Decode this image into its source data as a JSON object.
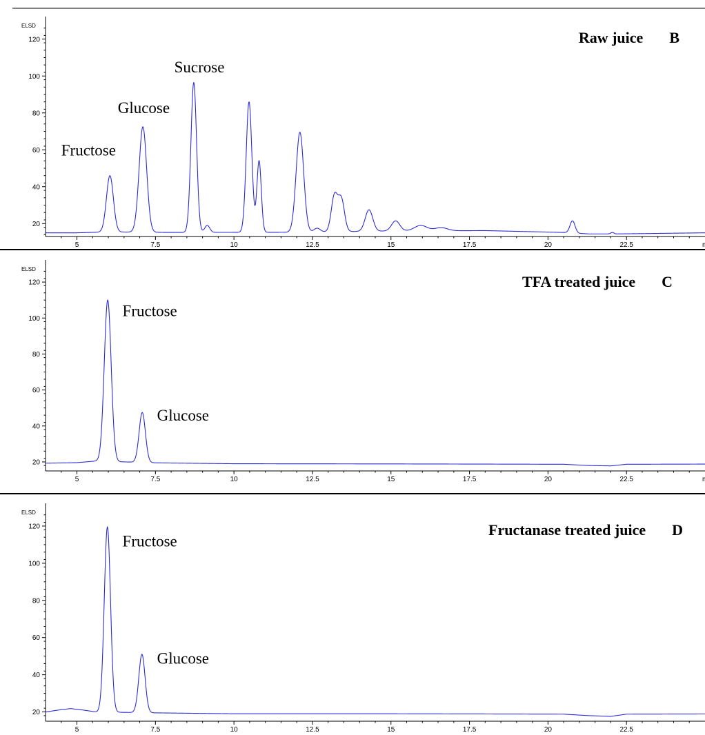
{
  "chart_data": [
    {
      "type": "line",
      "title": "Raw juice",
      "panel_letter": "B",
      "ylabel": "ELSD",
      "xlabel_partial": "m",
      "xlim": [
        4.0,
        25.0
      ],
      "ylim": [
        13,
        130
      ],
      "x_ticks": [
        5,
        7.5,
        10,
        12.5,
        15,
        17.5,
        20,
        22.5
      ],
      "x_tick_labels": [
        "5",
        "7.5",
        "10",
        "12.5",
        "15",
        "17.5",
        "20",
        "22.5"
      ],
      "y_ticks": [
        20,
        40,
        60,
        80,
        100,
        120
      ],
      "y_tick_labels": [
        "20",
        "40",
        "60",
        "80",
        "100",
        "120"
      ],
      "baseline": [
        [
          4.0,
          15
        ],
        [
          5.0,
          15
        ],
        [
          6.0,
          15.5
        ],
        [
          8.0,
          15.2
        ],
        [
          12.0,
          15.3
        ],
        [
          15.0,
          16.0
        ],
        [
          18.0,
          16.2
        ],
        [
          20.5,
          15.2
        ],
        [
          21.3,
          14.4
        ],
        [
          22.2,
          14.4
        ],
        [
          25.0,
          15.0
        ]
      ],
      "peaks": [
        {
          "x": 6.05,
          "height": 46,
          "width": 0.11
        },
        {
          "x": 7.1,
          "height": 72.5,
          "width": 0.12
        },
        {
          "x": 8.72,
          "height": 96.5,
          "width": 0.09
        },
        {
          "x": 9.15,
          "height": 19,
          "width": 0.08
        },
        {
          "x": 10.48,
          "height": 86,
          "width": 0.09
        },
        {
          "x": 10.8,
          "height": 54,
          "width": 0.07
        },
        {
          "x": 12.1,
          "height": 69.5,
          "width": 0.12
        },
        {
          "x": 12.65,
          "height": 17.5,
          "width": 0.1
        },
        {
          "x": 13.2,
          "height": 35,
          "width": 0.1
        },
        {
          "x": 13.42,
          "height": 33,
          "width": 0.1
        },
        {
          "x": 14.3,
          "height": 27.5,
          "width": 0.12
        },
        {
          "x": 15.15,
          "height": 21.5,
          "width": 0.13
        },
        {
          "x": 15.95,
          "height": 19,
          "width": 0.2
        },
        {
          "x": 16.6,
          "height": 17.8,
          "width": 0.2
        },
        {
          "x": 20.78,
          "height": 21.5,
          "width": 0.08
        },
        {
          "x": 22.05,
          "height": 15.2,
          "width": 0.05
        }
      ],
      "annotations": [
        {
          "text": "Fructose",
          "x": 4.5,
          "y": 57
        },
        {
          "text": "Glucose",
          "x": 6.3,
          "y": 80
        },
        {
          "text": "Sucrose",
          "x": 8.1,
          "y": 102
        }
      ]
    },
    {
      "type": "line",
      "title": "TFA treated juice",
      "panel_letter": "C",
      "ylabel": "ELSD",
      "xlabel_partial": "m",
      "xlim": [
        4.0,
        25.0
      ],
      "ylim": [
        15,
        130
      ],
      "x_ticks": [
        5,
        7.5,
        10,
        12.5,
        15,
        17.5,
        20,
        22.5
      ],
      "x_tick_labels": [
        "5",
        "7.5",
        "10",
        "12.5",
        "15",
        "17.5",
        "20",
        "22.5"
      ],
      "y_ticks": [
        20,
        40,
        60,
        80,
        100,
        120
      ],
      "y_tick_labels": [
        "20",
        "40",
        "60",
        "80",
        "100",
        "120"
      ],
      "baseline": [
        [
          4.0,
          19.3
        ],
        [
          5.0,
          19.6
        ],
        [
          5.6,
          20.5
        ],
        [
          7.5,
          19.5
        ],
        [
          10.0,
          19.0
        ],
        [
          15.0,
          18.9
        ],
        [
          18.0,
          18.8
        ],
        [
          20.5,
          18.7
        ],
        [
          21.3,
          18.0
        ],
        [
          22.0,
          17.8
        ],
        [
          22.5,
          18.7
        ],
        [
          25.0,
          18.8
        ]
      ],
      "peaks": [
        {
          "x": 5.98,
          "height": 110,
          "width": 0.11
        },
        {
          "x": 7.08,
          "height": 47.5,
          "width": 0.1
        }
      ],
      "annotations": [
        {
          "text": "Fructose",
          "x": 6.45,
          "y": 101
        },
        {
          "text": "Glucose",
          "x": 7.55,
          "y": 43
        }
      ]
    },
    {
      "type": "line",
      "title": "Fructanase treated juice",
      "panel_letter": "D",
      "ylabel": "ELSD",
      "xlim": [
        4.0,
        25.0
      ],
      "ylim": [
        15,
        130
      ],
      "x_ticks": [
        5,
        7.5,
        10,
        12.5,
        15,
        17.5,
        20,
        22.5
      ],
      "x_tick_labels": [
        "5",
        "7.5",
        "10",
        "12.5",
        "15",
        "17.5",
        "20",
        "22.5"
      ],
      "y_ticks": [
        20,
        40,
        60,
        80,
        100,
        120
      ],
      "y_tick_labels": [
        "20",
        "40",
        "60",
        "80",
        "100",
        "120"
      ],
      "baseline": [
        [
          4.0,
          20.0
        ],
        [
          4.5,
          21.2
        ],
        [
          4.8,
          21.8
        ],
        [
          5.2,
          21.0
        ],
        [
          5.6,
          20.0
        ],
        [
          7.5,
          19.5
        ],
        [
          10.0,
          19.0
        ],
        [
          15.0,
          19.0
        ],
        [
          18.0,
          18.9
        ],
        [
          20.5,
          18.8
        ],
        [
          21.3,
          18.0
        ],
        [
          22.0,
          17.6
        ],
        [
          22.5,
          18.8
        ],
        [
          25.0,
          18.9
        ]
      ],
      "peaks": [
        {
          "x": 5.97,
          "height": 119.5,
          "width": 0.1
        },
        {
          "x": 7.07,
          "height": 51,
          "width": 0.1
        }
      ],
      "annotations": [
        {
          "text": "Fructose",
          "x": 6.45,
          "y": 109
        },
        {
          "text": "Glucose",
          "x": 7.55,
          "y": 46
        }
      ]
    }
  ],
  "colors": {
    "trace": "#2b2bd6",
    "axis": "#000000",
    "background": "#ffffff"
  }
}
